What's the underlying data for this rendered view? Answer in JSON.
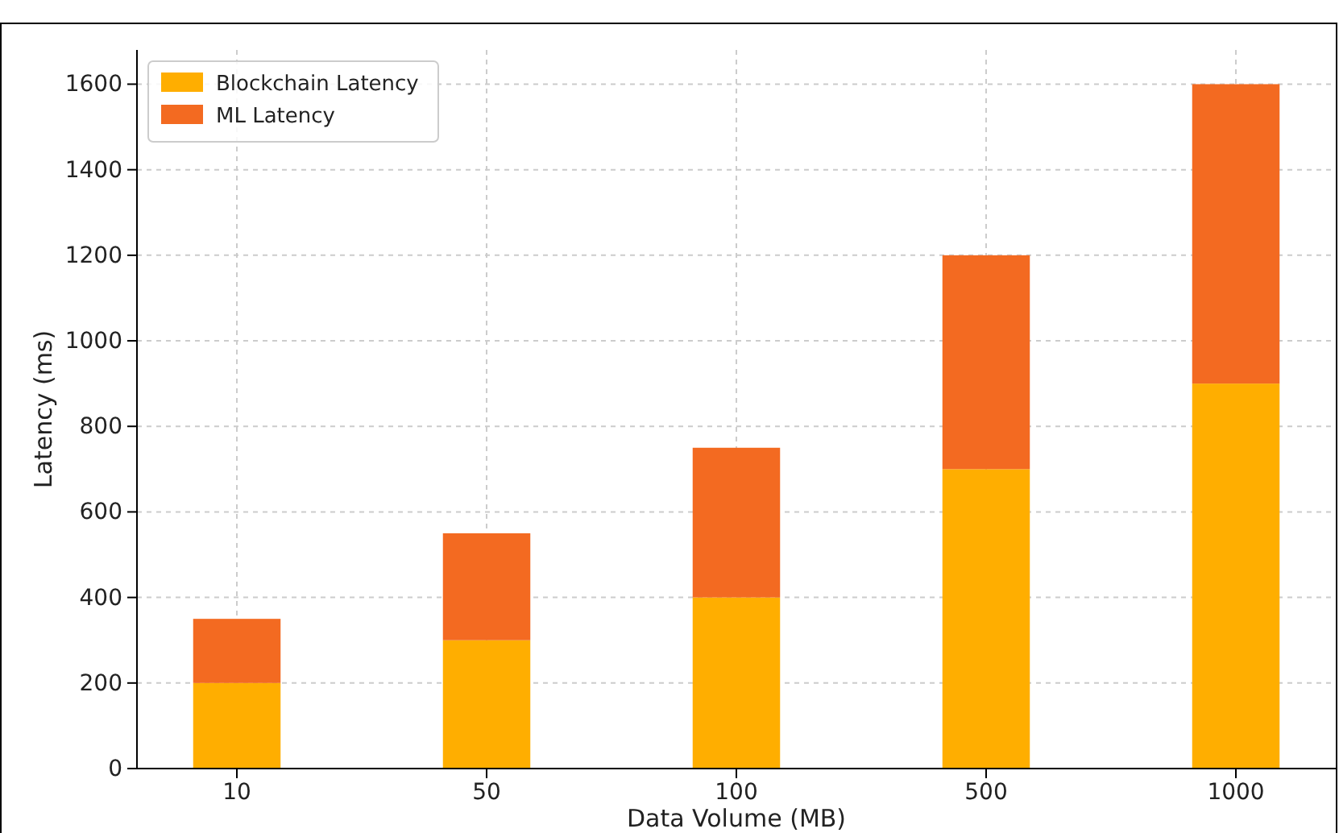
{
  "chart_data": {
    "type": "bar",
    "stacked": true,
    "xlabel": "Data Volume (MB)",
    "ylabel": "Latency (ms)",
    "categories": [
      "10",
      "50",
      "100",
      "500",
      "1000"
    ],
    "series": [
      {
        "name": "Blockchain Latency",
        "color": "#ffae00",
        "values": [
          200,
          300,
          400,
          700,
          900
        ]
      },
      {
        "name": "ML Latency",
        "color": "#f36a21",
        "values": [
          150,
          250,
          350,
          500,
          700
        ]
      }
    ],
    "ylim": [
      0,
      1680
    ],
    "yticks": [
      0,
      200,
      400,
      600,
      800,
      1000,
      1200,
      1400,
      1600
    ],
    "grid": true,
    "legend": "top left"
  }
}
